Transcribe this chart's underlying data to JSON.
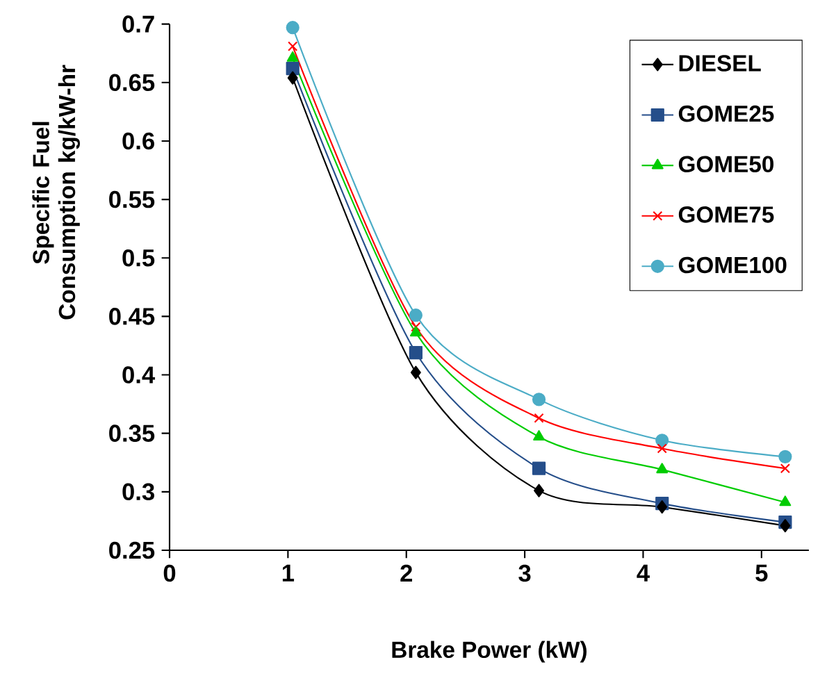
{
  "chart_data": {
    "type": "line",
    "xlabel": "Brake Power (kW)",
    "ylabel": "Specific Fuel Consumption kg/kW-hr",
    "x": [
      1.04,
      2.08,
      3.12,
      4.16,
      5.2
    ],
    "xlim": [
      0,
      5.4
    ],
    "xticks": [
      0,
      1,
      2,
      3,
      4,
      5
    ],
    "ylim": [
      0.25,
      0.7
    ],
    "yticks": [
      0.25,
      0.3,
      0.35,
      0.4,
      0.45,
      0.5,
      0.55,
      0.6,
      0.65,
      0.7
    ],
    "legend": "top right",
    "series": [
      {
        "name": "DIESEL",
        "color": "#000000",
        "marker": "diamond",
        "values": [
          0.654,
          0.402,
          0.301,
          0.287,
          0.271
        ]
      },
      {
        "name": "GOME25",
        "color": "#254e8a",
        "marker": "square",
        "values": [
          0.662,
          0.419,
          0.32,
          0.29,
          0.274
        ]
      },
      {
        "name": "GOME50",
        "color": "#00cc00",
        "marker": "triangle",
        "values": [
          0.671,
          0.436,
          0.347,
          0.319,
          0.291
        ]
      },
      {
        "name": "GOME75",
        "color": "#ff0000",
        "marker": "cross",
        "values": [
          0.681,
          0.441,
          0.363,
          0.337,
          0.32
        ]
      },
      {
        "name": "GOME100",
        "color": "#4bacc6",
        "marker": "circle",
        "values": [
          0.697,
          0.451,
          0.379,
          0.344,
          0.33
        ]
      }
    ]
  }
}
